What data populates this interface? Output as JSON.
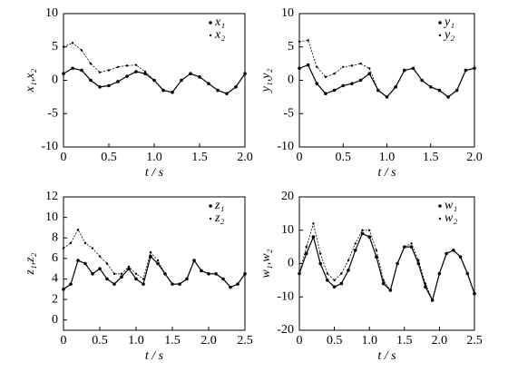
{
  "chart_data": [
    {
      "type": "scatter",
      "x_label": "t / s",
      "y_label": "x₁,x₂",
      "x": [
        0,
        0.1,
        0.2,
        0.3,
        0.4,
        0.5,
        0.6,
        0.7,
        0.8,
        0.9,
        1.0,
        1.1,
        1.2,
        1.3,
        1.4,
        1.5,
        1.6,
        1.7,
        1.8,
        1.9,
        2.0
      ],
      "series": [
        {
          "name": "x₁",
          "color": "#000000",
          "values": [
            1,
            1.8,
            1.5,
            0,
            -1,
            -0.8,
            -0.2,
            0.6,
            1.3,
            1.0,
            0,
            -1.5,
            -1.8,
            0,
            1,
            0.5,
            -0.5,
            -1.5,
            -2,
            -1,
            1
          ]
        },
        {
          "name": "x₂",
          "color": "#000000",
          "values": [
            5,
            5.6,
            4.5,
            2.5,
            1.2,
            1.5,
            2,
            2.2,
            2.3,
            1.3,
            0,
            -1.5,
            -1.8,
            0,
            1,
            0.5,
            -0.5,
            -1.5,
            -2,
            -1,
            1
          ]
        }
      ],
      "xlim": [
        0,
        2
      ],
      "xticks": [
        0,
        0.5,
        {
          "value": 1,
          "label": "1.0"
        },
        1.5,
        {
          "value": 2,
          "label": "2.0"
        }
      ],
      "ylim": [
        -10,
        10
      ],
      "yticks": [
        -10,
        -5,
        0,
        5,
        10
      ],
      "legend": "upper right"
    },
    {
      "type": "scatter",
      "x_label": "t / s",
      "y_label": "y₁,y₂",
      "x": [
        0,
        0.1,
        0.2,
        0.3,
        0.4,
        0.5,
        0.6,
        0.7,
        0.8,
        0.9,
        1.0,
        1.1,
        1.2,
        1.3,
        1.4,
        1.5,
        1.6,
        1.7,
        1.8,
        1.9,
        2.0
      ],
      "series": [
        {
          "name": "y₁",
          "color": "#000000",
          "values": [
            1.8,
            2.3,
            -0.5,
            -2,
            -1.5,
            -0.8,
            -0.5,
            0,
            1,
            -1.5,
            -2.5,
            -1,
            1.5,
            1.8,
            0,
            -1,
            -1.5,
            -2.5,
            -1.5,
            1.5,
            1.8
          ]
        },
        {
          "name": "y₂",
          "color": "#000000",
          "values": [
            5.8,
            6,
            2,
            0.5,
            1,
            2,
            2.2,
            2.5,
            1.8,
            -1.5,
            -2.5,
            -1,
            1.5,
            1.8,
            0,
            -1,
            -1.5,
            -2.5,
            -1.5,
            1.5,
            1.8
          ]
        }
      ],
      "xlim": [
        0,
        2
      ],
      "xticks": [
        0,
        0.5,
        {
          "value": 1,
          "label": "1.0"
        },
        1.5,
        {
          "value": 2,
          "label": "2.0"
        }
      ],
      "ylim": [
        -10,
        10
      ],
      "yticks": [
        -10,
        -5,
        0,
        5,
        10
      ],
      "legend": "upper right"
    },
    {
      "type": "scatter",
      "x_label": "t / s",
      "y_label": "z₁,z₂",
      "x": [
        0,
        0.1,
        0.2,
        0.3,
        0.4,
        0.5,
        0.6,
        0.7,
        0.8,
        0.9,
        1.0,
        1.1,
        1.2,
        1.3,
        1.4,
        1.5,
        1.6,
        1.7,
        1.8,
        1.9,
        2.0,
        2.1,
        2.2,
        2.3,
        2.4,
        2.5
      ],
      "series": [
        {
          "name": "z₁",
          "color": "#000000",
          "values": [
            3,
            3.5,
            5.8,
            5.5,
            4.5,
            5,
            4,
            3.5,
            4.2,
            5,
            4,
            3.5,
            6.2,
            5.5,
            4.5,
            3.5,
            3.5,
            4,
            5.8,
            4.8,
            4.5,
            4.5,
            4,
            3.2,
            3.5,
            4.5
          ]
        },
        {
          "name": "z₂",
          "color": "#000000",
          "values": [
            7,
            7.5,
            8.8,
            7.5,
            7,
            6.2,
            5.5,
            4.5,
            4.5,
            5.2,
            4.5,
            4,
            6.6,
            5.8,
            4.5,
            3.5,
            3.5,
            4,
            5.8,
            4.8,
            4.5,
            4.5,
            4,
            3.2,
            3.5,
            4.5
          ]
        }
      ],
      "xlim": [
        0,
        2.5
      ],
      "xticks": [
        0,
        0.5,
        {
          "value": 1,
          "label": "1.0"
        },
        1.5,
        {
          "value": 2,
          "label": "2.0"
        },
        2.5
      ],
      "ylim": [
        -1,
        12
      ],
      "yticks": [
        0,
        2,
        4,
        6,
        8,
        10,
        12
      ],
      "legend": "upper right"
    },
    {
      "type": "scatter",
      "x_label": "t / s",
      "y_label": "w₁,w₂",
      "x": [
        0,
        0.1,
        0.2,
        0.3,
        0.4,
        0.5,
        0.6,
        0.7,
        0.8,
        0.9,
        1.0,
        1.1,
        1.2,
        1.3,
        1.4,
        1.5,
        1.6,
        1.7,
        1.8,
        1.9,
        2.0,
        2.1,
        2.2,
        2.3,
        2.4,
        2.5
      ],
      "series": [
        {
          "name": "w₁",
          "color": "#000000",
          "values": [
            -3,
            3,
            8,
            0,
            -5,
            -7,
            -6,
            -2,
            4,
            9,
            8,
            2,
            -6,
            -8,
            0,
            5,
            5,
            0,
            -7,
            -11,
            -3,
            3,
            4,
            2,
            -3,
            -9
          ]
        },
        {
          "name": "w₂",
          "color": "#000000",
          "values": [
            -3,
            5,
            12,
            3,
            -3,
            -5,
            -3,
            1,
            6,
            10,
            10,
            4,
            -5,
            -8,
            0,
            5,
            6,
            1,
            -6,
            -11,
            -3,
            3,
            4,
            2,
            -3,
            -9
          ]
        }
      ],
      "xlim": [
        0,
        2.5
      ],
      "xticks": [
        0,
        0.5,
        {
          "value": 1,
          "label": "1.0"
        },
        1.5,
        {
          "value": 2,
          "label": "2.0"
        },
        2.5
      ],
      "ylim": [
        -20,
        20
      ],
      "yticks": [
        -20,
        -10,
        0,
        10,
        20
      ],
      "legend": "upper right"
    }
  ]
}
